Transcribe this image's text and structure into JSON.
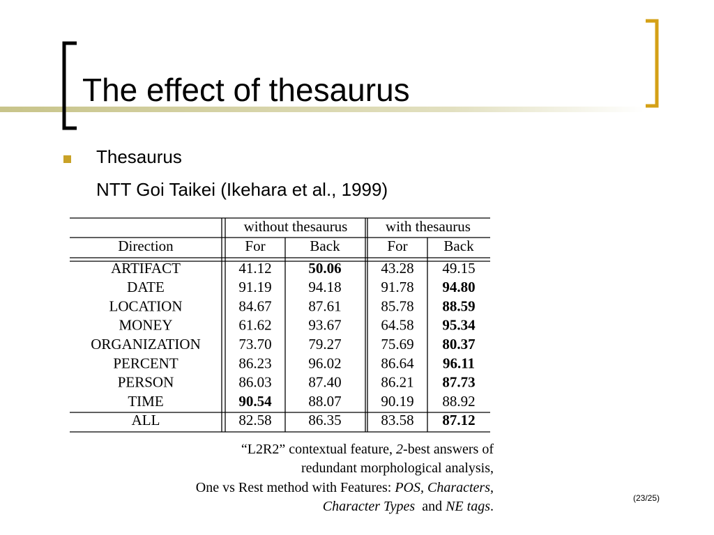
{
  "header": {
    "title": "The effect of thesaurus"
  },
  "bullets": [
    {
      "text": "Thesaurus",
      "sub": "NTT Goi Taikei (Ikehara et al., 1999)"
    }
  ],
  "table": {
    "groups": [
      "without thesaurus",
      "with thesaurus"
    ],
    "columns": [
      "Direction",
      "For",
      "Back",
      "For",
      "Back"
    ],
    "rows": [
      {
        "cells": [
          "ARTIFACT",
          "41.12",
          "50.06",
          "43.28",
          "49.15"
        ],
        "bold": 2
      },
      {
        "cells": [
          "DATE",
          "91.19",
          "94.18",
          "91.78",
          "94.80"
        ],
        "bold": 4
      },
      {
        "cells": [
          "LOCATION",
          "84.67",
          "87.61",
          "85.78",
          "88.59"
        ],
        "bold": 4
      },
      {
        "cells": [
          "MONEY",
          "61.62",
          "93.67",
          "64.58",
          "95.34"
        ],
        "bold": 4
      },
      {
        "cells": [
          "ORGANIZATION",
          "73.70",
          "79.27",
          "75.69",
          "80.37"
        ],
        "bold": 4
      },
      {
        "cells": [
          "PERCENT",
          "86.23",
          "96.02",
          "86.64",
          "96.11"
        ],
        "bold": 4
      },
      {
        "cells": [
          "PERSON",
          "86.03",
          "87.40",
          "86.21",
          "87.73"
        ],
        "bold": 4
      },
      {
        "cells": [
          "TIME",
          "90.54",
          "88.07",
          "90.19",
          "88.92"
        ],
        "bold": 1
      }
    ],
    "total": {
      "cells": [
        "ALL",
        "82.58",
        "86.35",
        "83.58",
        "87.12"
      ],
      "bold": 4
    }
  },
  "caption": [
    [
      {
        "text": "“L2R2” contextual feature, "
      },
      {
        "text": "2",
        "italic": true
      },
      {
        "text": "-best answers of"
      }
    ],
    [
      {
        "text": "redundant morphological analysis,"
      }
    ],
    [
      {
        "text": "One vs Rest method with Features: "
      },
      {
        "text": "POS, Characters",
        "italic": true
      },
      {
        "text": ","
      }
    ],
    [
      {
        "text": "Character Types",
        "italic": true
      },
      {
        "text": "  and "
      },
      {
        "text": "NE tags",
        "italic": true
      },
      {
        "text": "."
      }
    ]
  ],
  "page_number": "(23/25)"
}
